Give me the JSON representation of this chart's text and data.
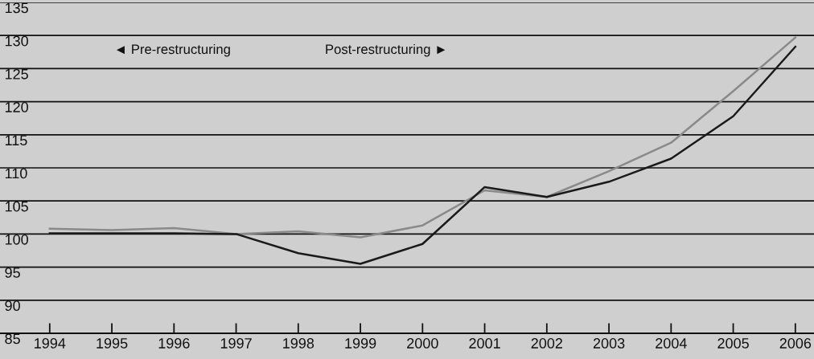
{
  "chart_data": {
    "type": "line",
    "x": [
      1994,
      1995,
      1996,
      1997,
      1998,
      1999,
      2000,
      2001,
      2002,
      2003,
      2004,
      2005,
      2006
    ],
    "series": [
      {
        "color": "#8a8a8a",
        "values": [
          100.8,
          100.6,
          100.9,
          100.0,
          100.4,
          99.5,
          101.3,
          106.6,
          105.6,
          109.5,
          113.8,
          121.6,
          129.7
        ]
      },
      {
        "color": "#1a1a1a",
        "values": [
          100.1,
          100.1,
          100.1,
          100.0,
          97.1,
          95.5,
          98.5,
          107.1,
          105.6,
          107.9,
          111.4,
          117.8,
          128.3
        ]
      }
    ],
    "annotations": [
      "◄ Pre-restructuring",
      "Post-restructuring ►"
    ],
    "xlim": [
      1993.2,
      2006.3
    ],
    "xticks": [
      1994,
      1995,
      1996,
      1997,
      1998,
      1999,
      2000,
      2001,
      2002,
      2003,
      2004,
      2005,
      2006
    ],
    "ylim": [
      85,
      135
    ],
    "yticks": [
      85,
      90,
      95,
      100,
      105,
      110,
      115,
      120,
      125,
      130,
      135
    ],
    "grid": "y",
    "legend": false,
    "marker": "none",
    "line_style": "solid"
  }
}
